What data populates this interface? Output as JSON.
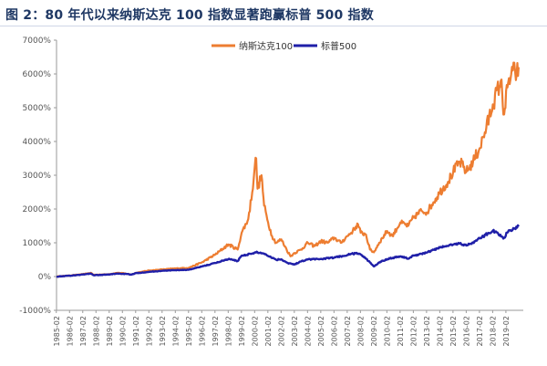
{
  "figure": {
    "title": "图 2：80 年代以来纳斯达克 100 指数显著跑赢标普 500 指数"
  },
  "chart_data": {
    "type": "line",
    "title": "",
    "xlabel": "",
    "ylabel": "",
    "ylim": [
      -1000,
      7000
    ],
    "y_ticks": [
      "-1000%",
      "0%",
      "1000%",
      "2000%",
      "3000%",
      "4000%",
      "5000%",
      "6000%",
      "7000%"
    ],
    "y_tick_values": [
      -1000,
      0,
      1000,
      2000,
      3000,
      4000,
      5000,
      6000,
      7000
    ],
    "x_tick_labels": [
      "1985-02",
      "1986-02",
      "1987-02",
      "1988-02",
      "1989-02",
      "1990-02",
      "1991-02",
      "1992-02",
      "1993-02",
      "1994-02",
      "1995-02",
      "1996-02",
      "1997-02",
      "1998-02",
      "1999-02",
      "2000-02",
      "2001-02",
      "2002-02",
      "2003-02",
      "2004-02",
      "2005-02",
      "2006-02",
      "2007-02",
      "2008-02",
      "2009-02",
      "2010-02",
      "2011-02",
      "2012-02",
      "2013-02",
      "2014-02",
      "2015-02",
      "2016-02",
      "2017-02",
      "2018-02",
      "2019-02"
    ],
    "grid": false,
    "legend_position": "top-center",
    "series": [
      {
        "name": "纳斯达克100",
        "color": "#ed7d31",
        "points": [
          [
            1985.1,
            0
          ],
          [
            1986.1,
            30
          ],
          [
            1987.1,
            70
          ],
          [
            1987.7,
            110
          ],
          [
            1987.9,
            50
          ],
          [
            1988.5,
            60
          ],
          [
            1989.1,
            70
          ],
          [
            1989.7,
            110
          ],
          [
            1990.1,
            100
          ],
          [
            1990.8,
            60
          ],
          [
            1991.1,
            110
          ],
          [
            1992.1,
            180
          ],
          [
            1993.1,
            210
          ],
          [
            1994.1,
            240
          ],
          [
            1995.1,
            260
          ],
          [
            1996.1,
            420
          ],
          [
            1997.1,
            650
          ],
          [
            1998.1,
            950
          ],
          [
            1998.8,
            800
          ],
          [
            1999.1,
            1300
          ],
          [
            1999.6,
            1700
          ],
          [
            1999.9,
            2500
          ],
          [
            2000.1,
            3300
          ],
          [
            2000.2,
            3500
          ],
          [
            2000.3,
            2600
          ],
          [
            2000.6,
            3000
          ],
          [
            2000.8,
            2100
          ],
          [
            2001.1,
            1600
          ],
          [
            2001.4,
            1200
          ],
          [
            2001.7,
            1000
          ],
          [
            2002.1,
            1100
          ],
          [
            2002.5,
            800
          ],
          [
            2002.8,
            600
          ],
          [
            2003.1,
            700
          ],
          [
            2003.6,
            800
          ],
          [
            2004.1,
            1000
          ],
          [
            2004.6,
            900
          ],
          [
            2005.1,
            1050
          ],
          [
            2005.6,
            1000
          ],
          [
            2006.1,
            1150
          ],
          [
            2006.6,
            1000
          ],
          [
            2007.1,
            1200
          ],
          [
            2007.5,
            1350
          ],
          [
            2007.9,
            1550
          ],
          [
            2008.1,
            1300
          ],
          [
            2008.5,
            1250
          ],
          [
            2008.8,
            800
          ],
          [
            2009.1,
            720
          ],
          [
            2009.5,
            1000
          ],
          [
            2010.1,
            1350
          ],
          [
            2010.5,
            1200
          ],
          [
            2011.1,
            1600
          ],
          [
            2011.7,
            1500
          ],
          [
            2012.1,
            1750
          ],
          [
            2012.7,
            1950
          ],
          [
            2013.1,
            1900
          ],
          [
            2013.6,
            2200
          ],
          [
            2014.1,
            2500
          ],
          [
            2014.7,
            2800
          ],
          [
            2015.1,
            3100
          ],
          [
            2015.6,
            3400
          ],
          [
            2016.1,
            3100
          ],
          [
            2016.6,
            3400
          ],
          [
            2017.1,
            3800
          ],
          [
            2017.6,
            4400
          ],
          [
            2018.1,
            5100
          ],
          [
            2018.7,
            5800
          ],
          [
            2018.95,
            4800
          ],
          [
            2019.2,
            5600
          ],
          [
            2019.6,
            6100
          ],
          [
            2019.9,
            6000
          ],
          [
            2020.05,
            6200
          ]
        ]
      },
      {
        "name": "标普500",
        "color": "#1f1fa8",
        "points": [
          [
            1985.1,
            0
          ],
          [
            1986.1,
            25
          ],
          [
            1987.1,
            60
          ],
          [
            1987.7,
            90
          ],
          [
            1987.9,
            40
          ],
          [
            1988.5,
            50
          ],
          [
            1989.1,
            60
          ],
          [
            1989.7,
            90
          ],
          [
            1990.1,
            80
          ],
          [
            1990.8,
            60
          ],
          [
            1991.1,
            100
          ],
          [
            1992.1,
            140
          ],
          [
            1993.1,
            170
          ],
          [
            1994.1,
            190
          ],
          [
            1995.1,
            200
          ],
          [
            1996.1,
            300
          ],
          [
            1997.1,
            400
          ],
          [
            1998.1,
            520
          ],
          [
            1998.8,
            460
          ],
          [
            1999.1,
            620
          ],
          [
            1999.9,
            680
          ],
          [
            2000.3,
            720
          ],
          [
            2000.8,
            680
          ],
          [
            2001.3,
            580
          ],
          [
            2001.7,
            500
          ],
          [
            2002.1,
            510
          ],
          [
            2002.6,
            400
          ],
          [
            2003.1,
            360
          ],
          [
            2003.6,
            450
          ],
          [
            2004.1,
            510
          ],
          [
            2005.1,
            520
          ],
          [
            2006.1,
            560
          ],
          [
            2007.1,
            640
          ],
          [
            2007.8,
            700
          ],
          [
            2008.3,
            600
          ],
          [
            2008.8,
            420
          ],
          [
            2009.1,
            300
          ],
          [
            2009.5,
            420
          ],
          [
            2010.1,
            520
          ],
          [
            2011.1,
            600
          ],
          [
            2011.7,
            530
          ],
          [
            2012.1,
            620
          ],
          [
            2013.1,
            710
          ],
          [
            2014.1,
            860
          ],
          [
            2015.1,
            950
          ],
          [
            2015.6,
            980
          ],
          [
            2016.1,
            920
          ],
          [
            2016.6,
            1010
          ],
          [
            2017.1,
            1130
          ],
          [
            2018.1,
            1360
          ],
          [
            2018.95,
            1150
          ],
          [
            2019.3,
            1370
          ],
          [
            2019.7,
            1420
          ],
          [
            2020.05,
            1480
          ]
        ]
      }
    ],
    "x_range": [
      1985.1,
      2020.4
    ]
  }
}
